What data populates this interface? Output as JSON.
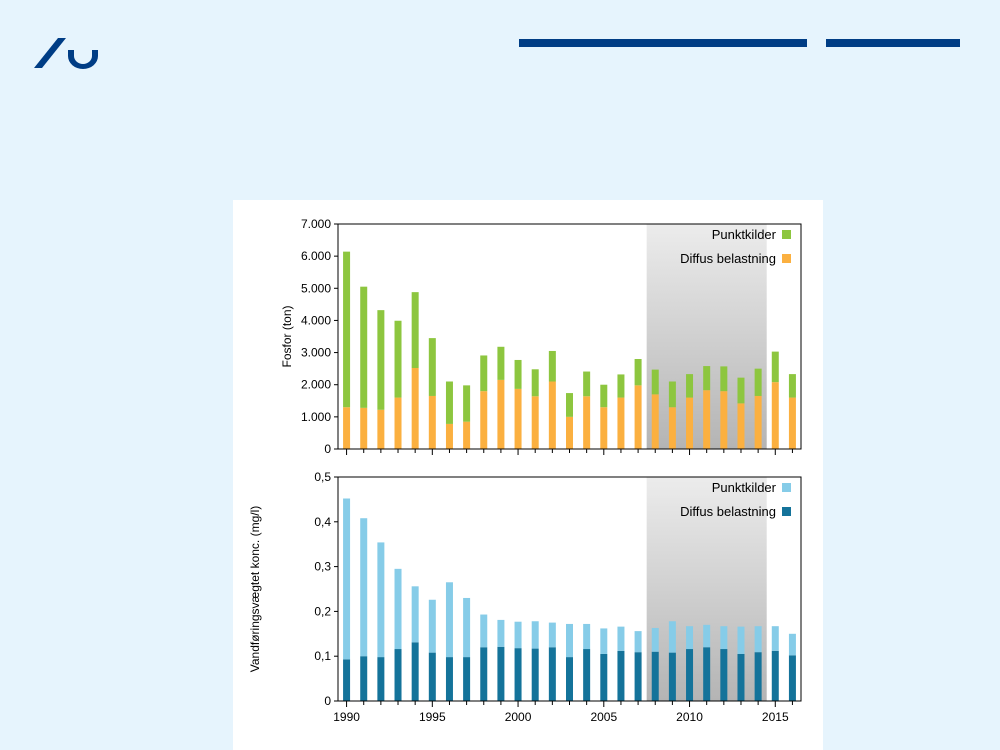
{
  "colors": {
    "background": "#e6f4fd",
    "brand": "#003d85",
    "green": "#8dc63f",
    "orange": "#fbb040",
    "light_blue": "#86cce8",
    "dark_teal": "#14739a",
    "shade_top": "#ececec",
    "shade_bottom": "#b4b4b4"
  },
  "header": {
    "logo_icon": "au-logo-icon"
  },
  "chart_data": [
    {
      "type": "bar",
      "stacked": true,
      "ylabel": "Fosfor (ton)",
      "ylim": [
        0,
        7000
      ],
      "yticks": [
        "0",
        "1.000",
        "2.000",
        "3.000",
        "4.000",
        "5.000",
        "6.000",
        "7.000"
      ],
      "x": [
        1990,
        1991,
        1992,
        1993,
        1994,
        1995,
        1996,
        1997,
        1998,
        1999,
        2000,
        2001,
        2002,
        2003,
        2004,
        2005,
        2006,
        2007,
        2008,
        2009,
        2010,
        2011,
        2012,
        2013,
        2014,
        2015,
        2016
      ],
      "shaded_range": [
        2007.5,
        2014.5
      ],
      "legend_position": "top-right",
      "series": [
        {
          "name": "Diffus belastning",
          "color": "#fbb040",
          "values": [
            1300,
            1280,
            1220,
            1600,
            2520,
            1650,
            780,
            850,
            1800,
            2150,
            1870,
            1640,
            2100,
            1000,
            1640,
            1300,
            1600,
            1980,
            1700,
            1300,
            1600,
            1830,
            1800,
            1420,
            1650,
            2080,
            1600
          ]
        },
        {
          "name": "Punktkilder",
          "color": "#8dc63f",
          "values": [
            4840,
            3770,
            3100,
            2390,
            2360,
            1800,
            1320,
            1130,
            1110,
            1030,
            900,
            840,
            950,
            740,
            770,
            700,
            720,
            820,
            770,
            800,
            730,
            750,
            770,
            800,
            850,
            950,
            730
          ]
        }
      ]
    },
    {
      "type": "bar",
      "stacked": true,
      "xlabel": "",
      "ylabel": "Vandføringsvægtet konc. (mg/l)",
      "ylim": [
        0,
        0.5
      ],
      "yticks": [
        "0",
        "0,1",
        "0,2",
        "0,3",
        "0,4",
        "0,5"
      ],
      "x": [
        1990,
        1991,
        1992,
        1993,
        1994,
        1995,
        1996,
        1997,
        1998,
        1999,
        2000,
        2001,
        2002,
        2003,
        2004,
        2005,
        2006,
        2007,
        2008,
        2009,
        2010,
        2011,
        2012,
        2013,
        2014,
        2015,
        2016
      ],
      "xticks": [
        "1990",
        "1995",
        "2000",
        "2005",
        "2010",
        "2015"
      ],
      "shaded_range": [
        2007.5,
        2014.5
      ],
      "legend_position": "top-right",
      "series": [
        {
          "name": "Diffus belastning",
          "color": "#14739a",
          "values": [
            0.093,
            0.1,
            0.098,
            0.116,
            0.131,
            0.108,
            0.098,
            0.098,
            0.12,
            0.121,
            0.118,
            0.117,
            0.12,
            0.098,
            0.116,
            0.105,
            0.112,
            0.109,
            0.11,
            0.108,
            0.116,
            0.12,
            0.116,
            0.105,
            0.109,
            0.112,
            0.102
          ]
        },
        {
          "name": "Punktkilder",
          "color": "#86cce8",
          "values": [
            0.359,
            0.308,
            0.256,
            0.179,
            0.125,
            0.118,
            0.167,
            0.132,
            0.073,
            0.06,
            0.059,
            0.061,
            0.055,
            0.074,
            0.056,
            0.057,
            0.054,
            0.047,
            0.053,
            0.07,
            0.051,
            0.05,
            0.051,
            0.061,
            0.058,
            0.055,
            0.048
          ]
        }
      ]
    }
  ]
}
